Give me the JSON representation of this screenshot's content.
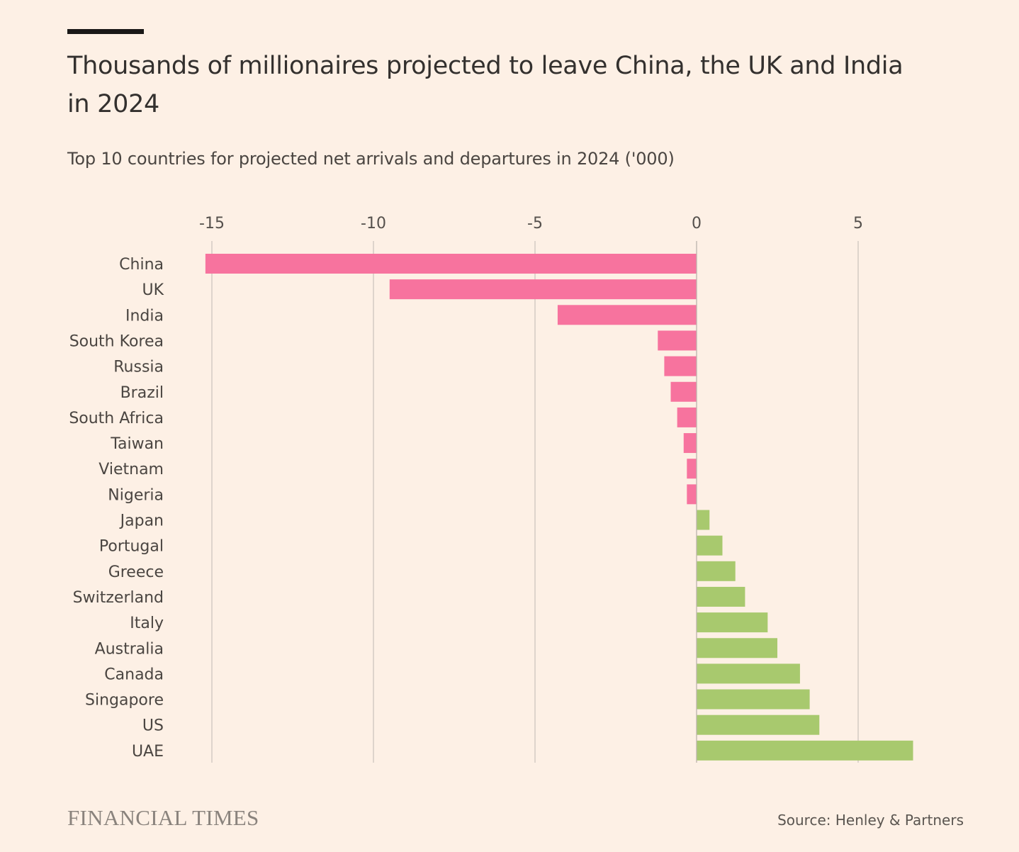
{
  "header": {
    "title": "Thousands of millionaires projected to leave China, the UK and India in 2024",
    "subtitle": "Top 10 countries for projected net arrivals and departures in 2024 ('000)"
  },
  "footer": {
    "brand": "FINANCIAL TIMES",
    "source": "Source: Henley & Partners"
  },
  "colors": {
    "negative": "#F7739E",
    "positive": "#A8C96E",
    "gridline": "#c9c2bb",
    "background": "#FDF0E5"
  },
  "chart_data": {
    "type": "bar",
    "orientation": "horizontal",
    "title": "Thousands of millionaires projected to leave China, the UK and India in 2024",
    "subtitle": "Top 10 countries for projected net arrivals and departures in 2024 ('000)",
    "xlabel": "",
    "ylabel": "",
    "xlim": [
      -15.5,
      7
    ],
    "xticks": [
      -15,
      -10,
      -5,
      0,
      5
    ],
    "xtick_labels": [
      "-15",
      "-10",
      "-5",
      "0",
      "5"
    ],
    "grid": "vertical",
    "axis_position": "top",
    "categories": [
      "China",
      "UK",
      "India",
      "South Korea",
      "Russia",
      "Brazil",
      "South Africa",
      "Taiwan",
      "Vietnam",
      "Nigeria",
      "Japan",
      "Portugal",
      "Greece",
      "Switzerland",
      "Italy",
      "Australia",
      "Canada",
      "Singapore",
      "US",
      "UAE"
    ],
    "values": [
      -15.2,
      -9.5,
      -4.3,
      -1.2,
      -1.0,
      -0.8,
      -0.6,
      -0.4,
      -0.3,
      -0.3,
      0.4,
      0.8,
      1.2,
      1.5,
      2.2,
      2.5,
      3.2,
      3.5,
      3.8,
      6.7
    ],
    "source": "Source: Henley & Partners"
  }
}
